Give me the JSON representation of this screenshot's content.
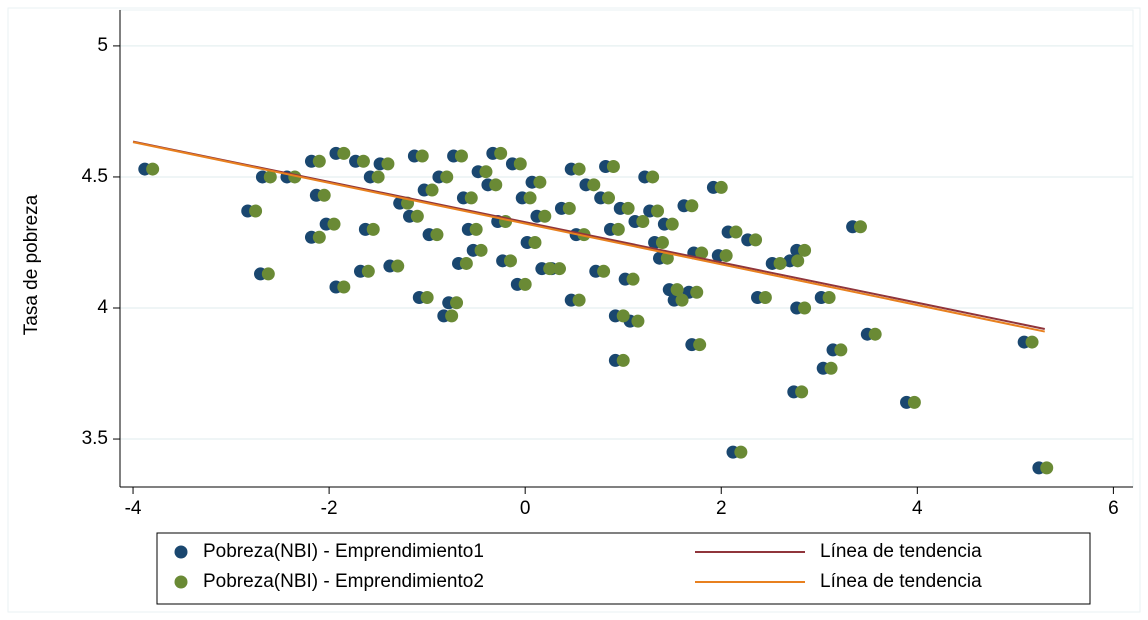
{
  "chart_data": {
    "type": "scatter",
    "y_label": "Tasa de pobreza",
    "xlim": [
      -4.133,
      6.2
    ],
    "ylim": [
      3.317,
      5.137
    ],
    "xticks": [
      -4,
      -2,
      0,
      2,
      4,
      6
    ],
    "yticks": [
      5,
      4.5,
      4,
      3.5
    ],
    "grid": true,
    "legend": "bottom",
    "series": [
      {
        "name": "Pobreza(NBI) - Emprendimiento1",
        "color": "#1a476f",
        "type": "scatter",
        "x": [
          -3.88,
          -2.83,
          -2.7,
          -2.68,
          -2.43,
          -2.18,
          -2.13,
          -2.18,
          -2.03,
          -1.93,
          -1.93,
          -1.73,
          -1.68,
          -1.63,
          -1.58,
          -1.48,
          -1.38,
          -1.28,
          -1.18,
          -1.13,
          -1.08,
          -1.03,
          -0.98,
          -0.88,
          -0.83,
          -0.78,
          -0.73,
          -0.68,
          -0.63,
          -0.58,
          -0.53,
          -0.48,
          -0.38,
          -0.33,
          -0.28,
          -0.23,
          -0.13,
          -0.08,
          -0.03,
          0.02,
          0.07,
          0.12,
          0.17,
          0.27,
          0.37,
          0.47,
          0.47,
          0.52,
          0.62,
          0.72,
          0.77,
          0.82,
          0.87,
          0.92,
          0.92,
          0.97,
          1.02,
          1.07,
          1.12,
          1.22,
          1.27,
          1.32,
          1.37,
          1.42,
          1.47,
          1.52,
          1.62,
          1.67,
          1.7,
          1.72,
          1.92,
          1.97,
          2.07,
          2.12,
          2.27,
          2.37,
          2.52,
          2.7,
          2.74,
          2.77,
          2.77,
          3.02,
          3.04,
          3.14,
          3.34,
          3.49,
          3.89,
          5.09,
          5.24
        ],
        "values": [
          4.53,
          4.37,
          4.13,
          4.5,
          4.5,
          4.56,
          4.43,
          4.27,
          4.32,
          4.59,
          4.08,
          4.56,
          4.14,
          4.3,
          4.5,
          4.55,
          4.16,
          4.4,
          4.35,
          4.58,
          4.04,
          4.45,
          4.28,
          4.5,
          3.97,
          4.02,
          4.58,
          4.17,
          4.42,
          4.3,
          4.22,
          4.52,
          4.47,
          4.59,
          4.33,
          4.18,
          4.55,
          4.09,
          4.42,
          4.25,
          4.48,
          4.35,
          4.15,
          4.15,
          4.38,
          4.03,
          4.53,
          4.28,
          4.47,
          4.14,
          4.42,
          4.54,
          4.3,
          3.97,
          3.8,
          4.38,
          4.11,
          3.95,
          4.33,
          4.5,
          4.37,
          4.25,
          4.19,
          4.32,
          4.07,
          4.03,
          4.39,
          4.06,
          3.86,
          4.21,
          4.46,
          4.2,
          4.29,
          3.45,
          4.26,
          4.04,
          4.17,
          4.18,
          3.68,
          4.0,
          4.22,
          4.04,
          3.77,
          3.84,
          4.31,
          3.9,
          3.64,
          3.87,
          3.39
        ]
      },
      {
        "name": "Pobreza(NBI) - Emprendimiento2",
        "color": "#6a8a35",
        "type": "scatter",
        "x": [
          -3.8,
          -2.75,
          -2.62,
          -2.6,
          -2.35,
          -2.1,
          -2.05,
          -2.1,
          -1.95,
          -1.85,
          -1.85,
          -1.65,
          -1.6,
          -1.55,
          -1.5,
          -1.4,
          -1.3,
          -1.2,
          -1.1,
          -1.05,
          -1.0,
          -0.95,
          -0.9,
          -0.8,
          -0.75,
          -0.7,
          -0.65,
          -0.6,
          -0.55,
          -0.5,
          -0.45,
          -0.4,
          -0.3,
          -0.25,
          -0.2,
          -0.15,
          -0.05,
          0.0,
          0.05,
          0.1,
          0.15,
          0.2,
          0.25,
          0.35,
          0.45,
          0.55,
          0.55,
          0.6,
          0.7,
          0.8,
          0.85,
          0.9,
          0.95,
          1.0,
          1.0,
          1.05,
          1.1,
          1.15,
          1.2,
          1.3,
          1.35,
          1.4,
          1.45,
          1.5,
          1.55,
          1.6,
          1.7,
          1.75,
          1.78,
          1.8,
          2.0,
          2.05,
          2.15,
          2.2,
          2.35,
          2.45,
          2.6,
          2.78,
          2.82,
          2.85,
          2.85,
          3.1,
          3.12,
          3.22,
          3.42,
          3.57,
          3.97,
          5.17,
          5.32
        ],
        "values": [
          4.53,
          4.37,
          4.13,
          4.5,
          4.5,
          4.56,
          4.43,
          4.27,
          4.32,
          4.59,
          4.08,
          4.56,
          4.14,
          4.3,
          4.5,
          4.55,
          4.16,
          4.4,
          4.35,
          4.58,
          4.04,
          4.45,
          4.28,
          4.5,
          3.97,
          4.02,
          4.58,
          4.17,
          4.42,
          4.3,
          4.22,
          4.52,
          4.47,
          4.59,
          4.33,
          4.18,
          4.55,
          4.09,
          4.42,
          4.25,
          4.48,
          4.35,
          4.15,
          4.15,
          4.38,
          4.03,
          4.53,
          4.28,
          4.47,
          4.14,
          4.42,
          4.54,
          4.3,
          3.97,
          3.8,
          4.38,
          4.11,
          3.95,
          4.33,
          4.5,
          4.37,
          4.25,
          4.19,
          4.32,
          4.07,
          4.03,
          4.39,
          4.06,
          3.86,
          4.21,
          4.46,
          4.2,
          4.29,
          3.45,
          4.26,
          4.04,
          4.17,
          4.18,
          3.68,
          4.0,
          4.22,
          4.04,
          3.77,
          3.84,
          4.31,
          3.9,
          3.64,
          3.87,
          3.39
        ]
      },
      {
        "name": "Línea de tendencia",
        "color": "#90353b",
        "type": "line",
        "x": [
          -4,
          5.3
        ],
        "values": [
          4.635,
          3.92
        ]
      },
      {
        "name": "Línea de tendencia",
        "color": "#e8801f",
        "type": "line",
        "x": [
          -4,
          5.3
        ],
        "values": [
          4.633,
          3.91
        ]
      }
    ]
  }
}
